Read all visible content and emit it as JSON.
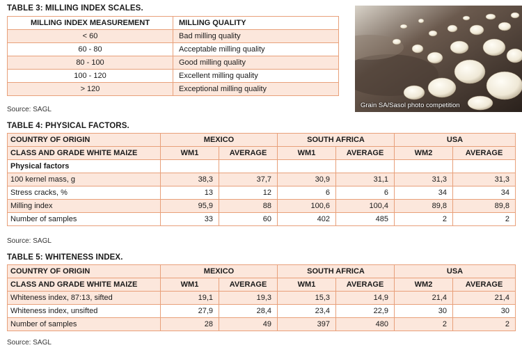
{
  "table3": {
    "title": "TABLE 3: MILLING INDEX SCALES.",
    "headers": [
      "MILLING INDEX MEASUREMENT",
      "MILLING QUALITY"
    ],
    "rows": [
      [
        "< 60",
        "Bad milling quality"
      ],
      [
        "60 - 80",
        "Acceptable milling quality"
      ],
      [
        "80 - 100",
        "Good milling quality"
      ],
      [
        "100 - 120",
        "Excellent milling quality"
      ],
      [
        "> 120",
        "Exceptional milling quality"
      ]
    ],
    "source": "Source: SAGL"
  },
  "photo": {
    "caption": "Grain SA/Sasol photo competition"
  },
  "table4": {
    "title": "TABLE 4: PHYSICAL FACTORS.",
    "country_label": "COUNTRY OF ORIGIN",
    "class_label": "CLASS AND GRADE WHITE MAIZE",
    "countries": [
      "MEXICO",
      "SOUTH AFRICA",
      "USA"
    ],
    "grades": [
      "WM1",
      "AVERAGE",
      "WM1",
      "AVERAGE",
      "WM2",
      "AVERAGE"
    ],
    "section_label": "Physical factors",
    "rows": [
      {
        "label": "100 kernel mass, g",
        "values": [
          "38,3",
          "37,7",
          "30,9",
          "31,1",
          "31,3",
          "31,3"
        ]
      },
      {
        "label": "Stress cracks, %",
        "values": [
          "13",
          "12",
          "6",
          "6",
          "34",
          "34"
        ]
      },
      {
        "label": "Milling index",
        "values": [
          "95,9",
          "88",
          "100,6",
          "100,4",
          "89,8",
          "89,8"
        ]
      },
      {
        "label": "Number of samples",
        "values": [
          "33",
          "60",
          "402",
          "485",
          "2",
          "2"
        ]
      }
    ],
    "source": "Source: SAGL"
  },
  "table5": {
    "title": "TABLE 5: WHITENESS INDEX.",
    "country_label": "COUNTRY OF ORIGIN",
    "class_label": "CLASS AND GRADE WHITE MAIZE",
    "countries": [
      "MEXICO",
      "SOUTH AFRICA",
      "USA"
    ],
    "grades": [
      "WM1",
      "AVERAGE",
      "WM1",
      "AVERAGE",
      "WM2",
      "AVERAGE"
    ],
    "rows": [
      {
        "label": "Whiteness index, 87:13, sifted",
        "values": [
          "19,1",
          "19,3",
          "15,3",
          "14,9",
          "21,4",
          "21,4"
        ]
      },
      {
        "label": "Whiteness index, unsifted",
        "values": [
          "27,9",
          "28,4",
          "23,4",
          "22,9",
          "30",
          "30"
        ]
      },
      {
        "label": "Number of samples",
        "values": [
          "28",
          "49",
          "397",
          "480",
          "2",
          "2"
        ]
      }
    ],
    "source": "Source: SAGL"
  }
}
